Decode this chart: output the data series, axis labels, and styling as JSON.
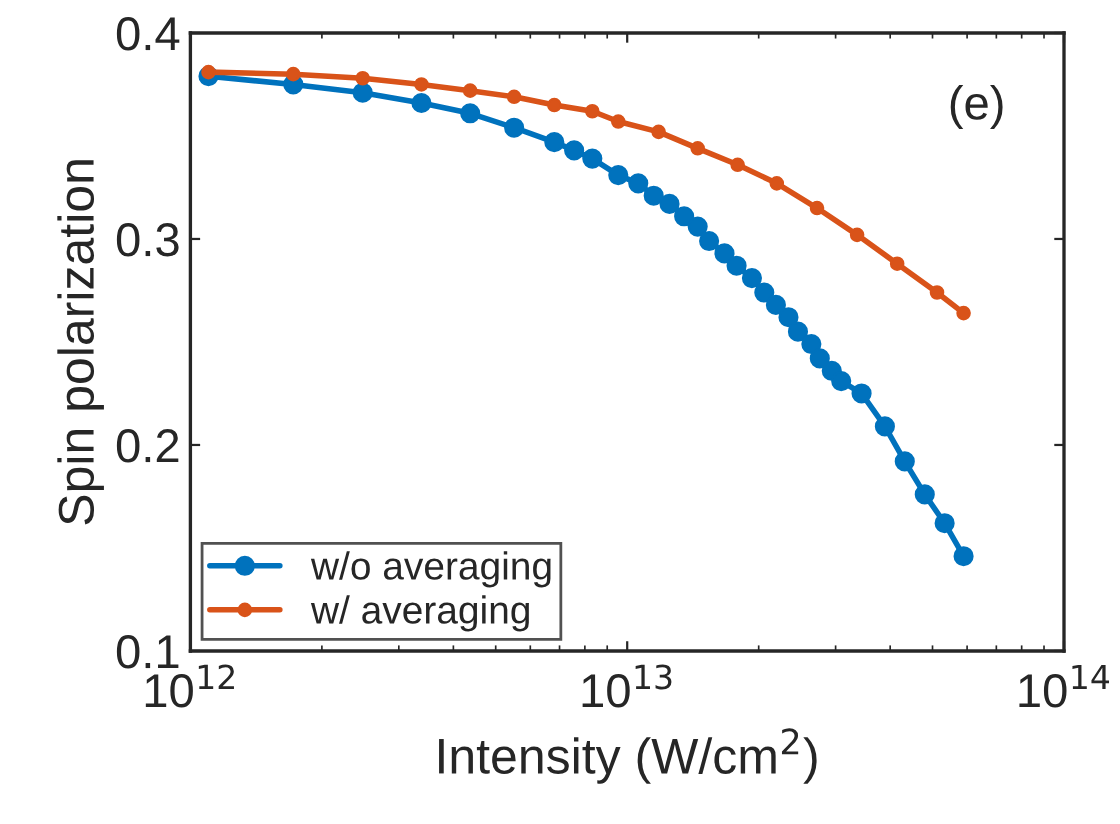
{
  "chart_data": {
    "type": "line",
    "xlabel": "Intensity (W/cm$^{2}$)",
    "ylabel": "Spin polarization",
    "annotations": [
      "(e)"
    ],
    "log": "x",
    "xlim": [
      1000000000000.0,
      100000000000000.0
    ],
    "xticks": [
      {
        "value": 1000000000000.0,
        "label": "10$^{12}$"
      },
      {
        "value": 10000000000000.0,
        "label": "10$^{13}$"
      },
      {
        "value": 100000000000000.0,
        "label": "10$^{14}$"
      }
    ],
    "ylim": [
      0.1,
      0.4
    ],
    "yticks": [
      0.1,
      0.2,
      0.3,
      0.4
    ],
    "grid": false,
    "legend": "bottom left",
    "marker": "circle",
    "line_style": "solid",
    "series": [
      {
        "name": "w/o averaging",
        "color": "#0072bd",
        "x": [
          1100000000000.0,
          1720000000000.0,
          2480000000000.0,
          3380000000000.0,
          4370000000000.0,
          5510000000000.0,
          6810000000000.0,
          7560000000000.0,
          8320000000000.0,
          9540000000000.0,
          10600000000000.0,
          11500000000000.0,
          12500000000000.0,
          13500000000000.0,
          14500000000000.0,
          15400000000000.0,
          16700000000000.0,
          17800000000000.0,
          19300000000000.0,
          20600000000000.0,
          21900000000000.0,
          23400000000000.0,
          24600000000000.0,
          26400000000000.0,
          27600000000000.0,
          29400000000000.0,
          30900000000000.0,
          34400000000000.0,
          38900000000000.0,
          43200000000000.0,
          48000000000000.0,
          53300000000000.0,
          58900000000000.0
        ],
        "values": [
          0.379,
          0.375,
          0.371,
          0.366,
          0.361,
          0.354,
          0.347,
          0.343,
          0.339,
          0.331,
          0.327,
          0.321,
          0.317,
          0.311,
          0.306,
          0.299,
          0.293,
          0.287,
          0.281,
          0.274,
          0.268,
          0.262,
          0.255,
          0.249,
          0.242,
          0.236,
          0.231,
          0.225,
          0.209,
          0.192,
          0.176,
          0.162,
          0.146
        ]
      },
      {
        "name": "w/ averaging",
        "color": "#d95319",
        "x": [
          1100000000000.0,
          1720000000000.0,
          2480000000000.0,
          3380000000000.0,
          4370000000000.0,
          5510000000000.0,
          6810000000000.0,
          8320000000000.0,
          9540000000000.0,
          11800000000000.0,
          14500000000000.0,
          17900000000000.0,
          22000000000000.0,
          27200000000000.0,
          33600000000000.0,
          41500000000000.0,
          51200000000000.0,
          58900000000000.0
        ],
        "values": [
          0.381,
          0.38,
          0.378,
          0.375,
          0.372,
          0.369,
          0.365,
          0.362,
          0.357,
          0.352,
          0.344,
          0.336,
          0.327,
          0.315,
          0.302,
          0.288,
          0.274,
          0.264
        ]
      }
    ]
  }
}
